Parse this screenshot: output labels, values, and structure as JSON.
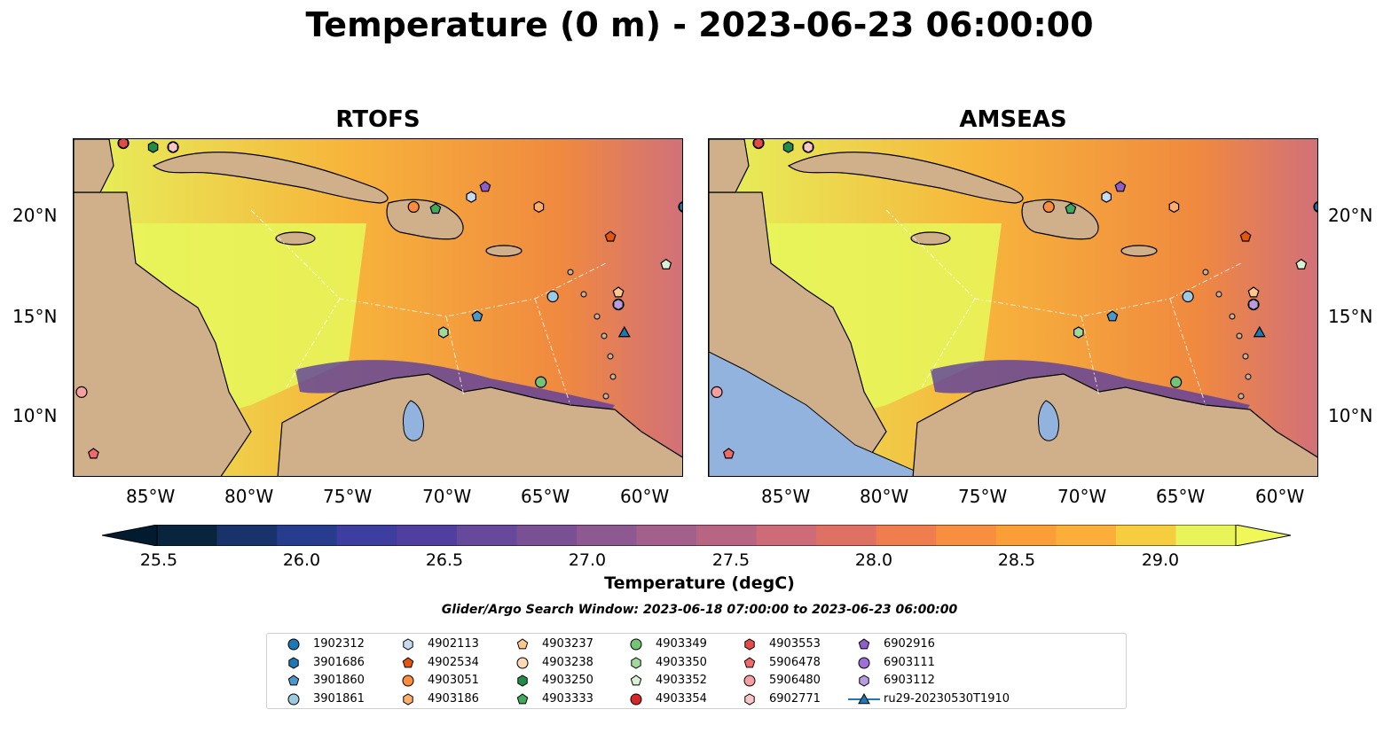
{
  "title": "Temperature (0 m) - 2023-06-23 06:00:00",
  "panels": [
    {
      "title": "RTOFS"
    },
    {
      "title": "AMSEAS"
    }
  ],
  "axes": {
    "lon_labels": [
      "85°W",
      "80°W",
      "75°W",
      "70°W",
      "65°W",
      "60°W"
    ],
    "lat_labels": [
      "20°N",
      "15°N",
      "10°N"
    ],
    "lon_range": [
      -89,
      -58.3
    ],
    "lat_range": [
      7,
      24
    ]
  },
  "colorbar": {
    "label": "Temperature (degC)",
    "ticks": [
      "25.5",
      "26.0",
      "26.5",
      "27.0",
      "27.5",
      "28.0",
      "28.5",
      "29.0"
    ],
    "vmin": 25.3,
    "vmax": 29.4,
    "colors": [
      "#09253d",
      "#19326a",
      "#283c8e",
      "#3e3da0",
      "#513f9f",
      "#66499a",
      "#7a5095",
      "#8e5991",
      "#a2608a",
      "#b76583",
      "#cd6b78",
      "#df7064",
      "#ef7e4f",
      "#f78f40",
      "#fa9e37",
      "#fbaf3a",
      "#f5cd3e",
      "#e8f55a"
    ]
  },
  "search_window": "Glider/Argo Search Window: 2023-06-18 07:00:00 to 2023-06-23 06:00:00",
  "legend": {
    "entries": [
      {
        "label": "1902312",
        "marker": "circle",
        "color": "#1f77b4"
      },
      {
        "label": "3901686",
        "marker": "hexagon",
        "color": "#1f77b4"
      },
      {
        "label": "3901860",
        "marker": "pentagon",
        "color": "#4a98c9"
      },
      {
        "label": "3901861",
        "marker": "circle",
        "color": "#9ecae1"
      },
      {
        "label": "4902113",
        "marker": "hexagon",
        "color": "#c6dbef"
      },
      {
        "label": "4902534",
        "marker": "pentagon",
        "color": "#e6550d"
      },
      {
        "label": "4903051",
        "marker": "circle",
        "color": "#fd8d3c"
      },
      {
        "label": "4903186",
        "marker": "hexagon",
        "color": "#fdae6b"
      },
      {
        "label": "4903237",
        "marker": "pentagon",
        "color": "#fdc88e"
      },
      {
        "label": "4903238",
        "marker": "circle",
        "color": "#fdd9b4"
      },
      {
        "label": "4903250",
        "marker": "hexagon",
        "color": "#238b45"
      },
      {
        "label": "4903333",
        "marker": "pentagon",
        "color": "#41ab5d"
      },
      {
        "label": "4903349",
        "marker": "circle",
        "color": "#74c476"
      },
      {
        "label": "4903350",
        "marker": "hexagon",
        "color": "#a1d99b"
      },
      {
        "label": "4903352",
        "marker": "pentagon",
        "color": "#d9f0d3"
      },
      {
        "label": "4903354",
        "marker": "circle",
        "color": "#d62728"
      },
      {
        "label": "4903553",
        "marker": "hexagon",
        "color": "#e34a4a"
      },
      {
        "label": "5906478",
        "marker": "pentagon",
        "color": "#f06a6a"
      },
      {
        "label": "5906480",
        "marker": "circle",
        "color": "#f4a0a0"
      },
      {
        "label": "6902771",
        "marker": "hexagon",
        "color": "#fcc5c5"
      },
      {
        "label": "6902916",
        "marker": "pentagon",
        "color": "#8e5ec9"
      },
      {
        "label": "6903111",
        "marker": "circle",
        "color": "#9e6fd6"
      },
      {
        "label": "6903112",
        "marker": "hexagon",
        "color": "#b89be0"
      },
      {
        "label": "ru29-20230530T1910",
        "marker": "triangle-line",
        "color": "#1f77b4"
      }
    ]
  },
  "floats": [
    {
      "id": "1902312",
      "lon": -58.3,
      "lat": 20.6
    },
    {
      "id": "3901686",
      "lon": -58.3,
      "lat": 20.6
    },
    {
      "id": "3901860",
      "lon": -68.7,
      "lat": 15.1
    },
    {
      "id": "3901861",
      "lon": -64.9,
      "lat": 16.1
    },
    {
      "id": "4902113",
      "lon": -69.0,
      "lat": 21.1
    },
    {
      "id": "4902534",
      "lon": -62.0,
      "lat": 19.1
    },
    {
      "id": "4903051",
      "lon": -71.9,
      "lat": 20.6
    },
    {
      "id": "4903186",
      "lon": -65.6,
      "lat": 20.6
    },
    {
      "id": "4903237",
      "lon": -61.6,
      "lat": 16.3
    },
    {
      "id": "4903238",
      "lon": -84.0,
      "lat": 23.6
    },
    {
      "id": "4903250",
      "lon": -85.0,
      "lat": 23.6
    },
    {
      "id": "4903333",
      "lon": -70.8,
      "lat": 20.5
    },
    {
      "id": "4903349",
      "lon": -65.5,
      "lat": 11.8
    },
    {
      "id": "4903350",
      "lon": -70.4,
      "lat": 14.3
    },
    {
      "id": "4903352",
      "lon": -59.2,
      "lat": 17.7
    },
    {
      "id": "4903354",
      "lon": -86.5,
      "lat": 23.8
    },
    {
      "id": "4903553",
      "lon": -86.5,
      "lat": 23.8
    },
    {
      "id": "5906478",
      "lon": -88.0,
      "lat": 8.2
    },
    {
      "id": "5906480",
      "lon": -88.6,
      "lat": 11.3
    },
    {
      "id": "6902771",
      "lon": -84.0,
      "lat": 23.6
    },
    {
      "id": "6902916",
      "lon": -68.3,
      "lat": 21.6
    },
    {
      "id": "6903111",
      "lon": -61.6,
      "lat": 15.7
    },
    {
      "id": "6903112",
      "lon": -61.6,
      "lat": 15.7
    },
    {
      "id": "ru29-20230530T1910",
      "lon": -61.3,
      "lat": 14.3
    }
  ]
}
